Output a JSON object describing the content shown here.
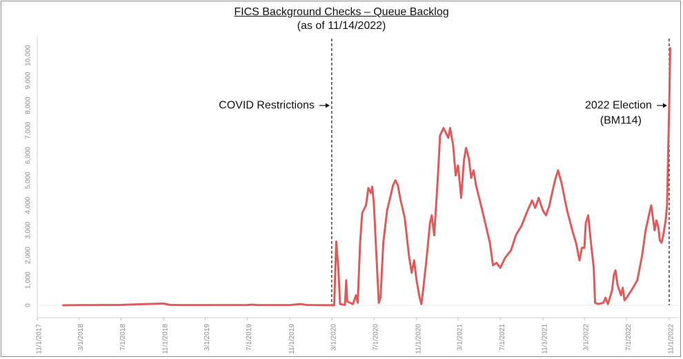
{
  "chart_data": {
    "type": "line",
    "title": "FICS Background Checks – Queue Backlog",
    "subtitle": "(as of 11/14/2022)",
    "xlabel": "",
    "ylabel": "",
    "ylim": [
      0,
      10500
    ],
    "xlim": [
      "2017-11-01",
      "2022-12-01"
    ],
    "grid": false,
    "line_color": "#e05a5a",
    "y_ticks": [
      {
        "value": 0,
        "label": "0"
      },
      {
        "value": 1000,
        "label": "1,000"
      },
      {
        "value": 2000,
        "label": "2,000"
      },
      {
        "value": 3000,
        "label": "3,000"
      },
      {
        "value": 4000,
        "label": "4,000"
      },
      {
        "value": 5000,
        "label": "5,000"
      },
      {
        "value": 6000,
        "label": "6,000"
      },
      {
        "value": 7000,
        "label": "7,000"
      },
      {
        "value": 8000,
        "label": "8,000"
      },
      {
        "value": 9000,
        "label": "9,000"
      },
      {
        "value": 10000,
        "label": "10,000"
      }
    ],
    "x_ticks": [
      {
        "date": "2017-11-01",
        "label": "11/1/2017"
      },
      {
        "date": "2018-03-01",
        "label": "3/1/2018"
      },
      {
        "date": "2018-07-01",
        "label": "7/1/2018"
      },
      {
        "date": "2018-11-01",
        "label": "11/1/2018"
      },
      {
        "date": "2019-03-01",
        "label": "3/1/2019"
      },
      {
        "date": "2019-07-01",
        "label": "7/1/2019"
      },
      {
        "date": "2019-11-01",
        "label": "11/1/2019"
      },
      {
        "date": "2020-03-01",
        "label": "3/1/2020"
      },
      {
        "date": "2020-07-01",
        "label": "7/1/2020"
      },
      {
        "date": "2020-11-01",
        "label": "11/1/2020"
      },
      {
        "date": "2021-03-01",
        "label": "3/1/2021"
      },
      {
        "date": "2021-07-01",
        "label": "7/1/2021"
      },
      {
        "date": "2021-11-01",
        "label": "11/1/2021"
      },
      {
        "date": "2022-03-01",
        "label": "3/1/2022"
      },
      {
        "date": "2022-07-01",
        "label": "7/1/2022"
      },
      {
        "date": "2022-11-01",
        "label": "11/1/2022"
      }
    ],
    "annotations": [
      {
        "date": "2020-03-01",
        "label_lines": [
          "COVID Restrictions"
        ],
        "value": 8000
      },
      {
        "date": "2022-11-01",
        "label_lines": [
          "2022 Election",
          "(BM114)"
        ],
        "value": 8000
      }
    ],
    "series": [
      {
        "name": "",
        "points": [
          [
            "2018-01-15",
            0
          ],
          [
            "2018-03-01",
            5
          ],
          [
            "2018-07-01",
            15
          ],
          [
            "2018-09-01",
            45
          ],
          [
            "2018-11-01",
            70
          ],
          [
            "2018-11-20",
            15
          ],
          [
            "2019-01-01",
            5
          ],
          [
            "2019-03-01",
            5
          ],
          [
            "2019-07-01",
            10
          ],
          [
            "2019-07-15",
            25
          ],
          [
            "2019-08-01",
            5
          ],
          [
            "2019-11-01",
            5
          ],
          [
            "2019-12-01",
            50
          ],
          [
            "2019-12-20",
            10
          ],
          [
            "2020-03-01",
            0
          ],
          [
            "2020-03-08",
            0
          ],
          [
            "2020-03-14",
            2550
          ],
          [
            "2020-03-20",
            1500
          ],
          [
            "2020-03-25",
            50
          ],
          [
            "2020-04-08",
            10
          ],
          [
            "2020-04-12",
            1000
          ],
          [
            "2020-04-15",
            150
          ],
          [
            "2020-05-01",
            50
          ],
          [
            "2020-05-10",
            400
          ],
          [
            "2020-05-15",
            100
          ],
          [
            "2020-05-22",
            2500
          ],
          [
            "2020-05-28",
            3700
          ],
          [
            "2020-06-08",
            4000
          ],
          [
            "2020-06-15",
            4700
          ],
          [
            "2020-06-22",
            4500
          ],
          [
            "2020-06-26",
            4750
          ],
          [
            "2020-07-01",
            4000
          ],
          [
            "2020-07-08",
            2000
          ],
          [
            "2020-07-15",
            100
          ],
          [
            "2020-07-20",
            300
          ],
          [
            "2020-07-28",
            2500
          ],
          [
            "2020-08-08",
            3800
          ],
          [
            "2020-08-20",
            4500
          ],
          [
            "2020-08-25",
            4800
          ],
          [
            "2020-09-01",
            5000
          ],
          [
            "2020-09-08",
            4800
          ],
          [
            "2020-09-16",
            4200
          ],
          [
            "2020-09-28",
            3500
          ],
          [
            "2020-10-10",
            2000
          ],
          [
            "2020-10-18",
            1300
          ],
          [
            "2020-10-25",
            1800
          ],
          [
            "2020-11-01",
            1000
          ],
          [
            "2020-11-10",
            300
          ],
          [
            "2020-11-15",
            50
          ],
          [
            "2020-11-20",
            600
          ],
          [
            "2020-12-01",
            2000
          ],
          [
            "2020-12-10",
            3300
          ],
          [
            "2020-12-15",
            3600
          ],
          [
            "2020-12-22",
            2800
          ],
          [
            "2021-01-01",
            5000
          ],
          [
            "2021-01-08",
            6800
          ],
          [
            "2021-01-18",
            7100
          ],
          [
            "2021-02-01",
            6700
          ],
          [
            "2021-02-06",
            7100
          ],
          [
            "2021-02-15",
            6400
          ],
          [
            "2021-02-22",
            5200
          ],
          [
            "2021-03-01",
            5600
          ],
          [
            "2021-03-10",
            4300
          ],
          [
            "2021-03-18",
            5800
          ],
          [
            "2021-03-24",
            6300
          ],
          [
            "2021-04-01",
            5900
          ],
          [
            "2021-04-08",
            5100
          ],
          [
            "2021-04-15",
            5400
          ],
          [
            "2021-04-22",
            4800
          ],
          [
            "2021-05-01",
            4300
          ],
          [
            "2021-05-15",
            3500
          ],
          [
            "2021-06-01",
            2500
          ],
          [
            "2021-06-10",
            1600
          ],
          [
            "2021-06-20",
            1700
          ],
          [
            "2021-07-01",
            1500
          ],
          [
            "2021-07-15",
            1900
          ],
          [
            "2021-08-01",
            2200
          ],
          [
            "2021-08-15",
            2800
          ],
          [
            "2021-09-01",
            3200
          ],
          [
            "2021-09-15",
            3700
          ],
          [
            "2021-10-01",
            4200
          ],
          [
            "2021-10-10",
            3900
          ],
          [
            "2021-10-20",
            4300
          ],
          [
            "2021-11-01",
            3800
          ],
          [
            "2021-11-10",
            3600
          ],
          [
            "2021-11-20",
            4000
          ],
          [
            "2021-12-01",
            4700
          ],
          [
            "2021-12-08",
            5100
          ],
          [
            "2021-12-15",
            5400
          ],
          [
            "2021-12-25",
            4900
          ],
          [
            "2022-01-10",
            3800
          ],
          [
            "2022-01-25",
            3000
          ],
          [
            "2022-02-05",
            2500
          ],
          [
            "2022-02-15",
            1800
          ],
          [
            "2022-02-22",
            2300
          ],
          [
            "2022-03-01",
            2300
          ],
          [
            "2022-03-05",
            3300
          ],
          [
            "2022-03-12",
            3600
          ],
          [
            "2022-03-20",
            2500
          ],
          [
            "2022-03-28",
            1500
          ],
          [
            "2022-04-01",
            100
          ],
          [
            "2022-04-10",
            50
          ],
          [
            "2022-04-25",
            100
          ],
          [
            "2022-05-01",
            300
          ],
          [
            "2022-05-08",
            50
          ],
          [
            "2022-05-20",
            600
          ],
          [
            "2022-05-25",
            1200
          ],
          [
            "2022-05-30",
            1400
          ],
          [
            "2022-06-05",
            800
          ],
          [
            "2022-06-15",
            400
          ],
          [
            "2022-06-20",
            700
          ],
          [
            "2022-06-25",
            200
          ],
          [
            "2022-07-01",
            300
          ],
          [
            "2022-07-15",
            600
          ],
          [
            "2022-08-01",
            1000
          ],
          [
            "2022-08-15",
            2000
          ],
          [
            "2022-08-25",
            3000
          ],
          [
            "2022-09-05",
            3700
          ],
          [
            "2022-09-10",
            4000
          ],
          [
            "2022-09-15",
            3500
          ],
          [
            "2022-09-20",
            3000
          ],
          [
            "2022-09-25",
            3400
          ],
          [
            "2022-10-01",
            3100
          ],
          [
            "2022-10-05",
            2600
          ],
          [
            "2022-10-10",
            2500
          ],
          [
            "2022-10-15",
            2800
          ],
          [
            "2022-10-22",
            3400
          ],
          [
            "2022-10-26",
            4000
          ],
          [
            "2022-10-29",
            6000
          ],
          [
            "2022-11-01",
            8000
          ],
          [
            "2022-11-04",
            10300
          ]
        ]
      }
    ]
  }
}
